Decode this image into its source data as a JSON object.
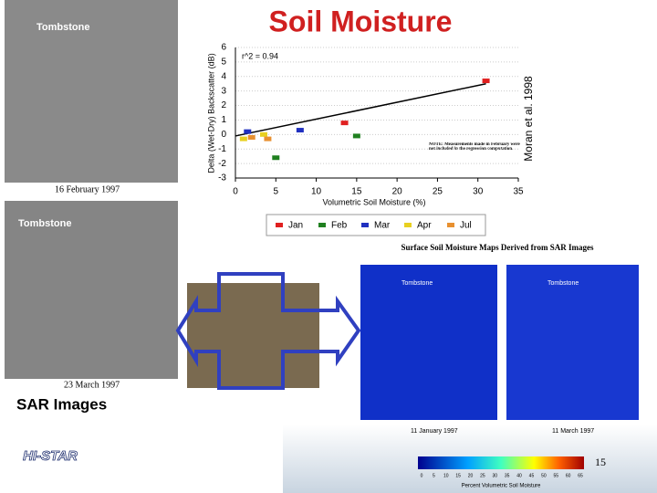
{
  "title": "Soil Moisture",
  "credit": "Moran et al. 1998",
  "sar": {
    "caption": "SAR Images",
    "images": [
      {
        "label": "Tombstone",
        "date": "16 February 1997"
      },
      {
        "label": "Tombstone",
        "date": "23 March 1997"
      }
    ]
  },
  "maps": {
    "title": "Surface Soil Moisture Maps Derived from SAR Images",
    "images": [
      {
        "label": "Tombstone",
        "date": "11 January 1997"
      },
      {
        "label": "Tombstone",
        "date": "11 March 1997"
      }
    ],
    "colorbar_ticks": [
      0,
      5,
      10,
      15,
      20,
      25,
      30,
      35,
      40,
      45,
      50,
      55,
      60,
      65
    ],
    "colorbar_label": "Percent Volumetric Soil Moisture"
  },
  "logo": "HI-STAR",
  "page_number": "15",
  "chart_data": {
    "type": "scatter",
    "x_label": "Volumetric Soil Moisture (%)",
    "y_label": "Delta (Wet-Dry) Backscatter (dB)",
    "annotation": "r^2 = 0.94",
    "note": "NOTE: Measurements made in February were not included in the regression computation.",
    "xlim": [
      0,
      35
    ],
    "xticks": [
      0,
      5,
      10,
      15,
      20,
      25,
      30,
      35
    ],
    "ylim": [
      -3,
      6
    ],
    "yticks": [
      -3,
      -2,
      -1,
      0,
      1,
      2,
      3,
      4,
      5,
      6
    ],
    "grid": true,
    "regression": {
      "x": [
        0,
        31
      ],
      "values": [
        -0.1,
        3.5
      ]
    },
    "series": [
      {
        "name": "Jan",
        "color": "#e02020",
        "x": [
          31,
          13.5
        ],
        "values": [
          3.7,
          0.8
        ]
      },
      {
        "name": "Feb",
        "color": "#208020",
        "x": [
          15,
          5
        ],
        "values": [
          -0.1,
          -1.6
        ]
      },
      {
        "name": "Mar",
        "color": "#2030c0",
        "x": [
          8,
          1.5
        ],
        "values": [
          0.3,
          0.2
        ]
      },
      {
        "name": "Apr",
        "color": "#e8d020",
        "x": [
          1,
          3.5
        ],
        "values": [
          -0.3,
          0.0
        ]
      },
      {
        "name": "Jul",
        "color": "#e89030",
        "x": [
          2,
          4
        ],
        "values": [
          -0.2,
          -0.3
        ]
      }
    ]
  }
}
